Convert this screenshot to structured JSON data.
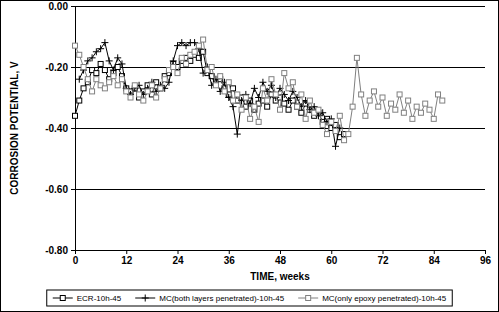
{
  "chart_data": {
    "type": "line",
    "xlabel": "TIME, weeks",
    "ylabel": "CORROSION POTENTIAL, V",
    "x": [
      0,
      1,
      2,
      3,
      4,
      5,
      6,
      7,
      8,
      9,
      10,
      11,
      12,
      13,
      14,
      15,
      16,
      17,
      18,
      19,
      20,
      21,
      22,
      23,
      24,
      25,
      26,
      27,
      28,
      29,
      30,
      31,
      32,
      33,
      34,
      35,
      36,
      37,
      38,
      39,
      40,
      41,
      42,
      43,
      44,
      45,
      46,
      47,
      48,
      49,
      50,
      51,
      52,
      53,
      54,
      55,
      56,
      57,
      58,
      59,
      60,
      61,
      62,
      63,
      64,
      65,
      66,
      67,
      68,
      69,
      70,
      71,
      72,
      73,
      74,
      75,
      76,
      77,
      78,
      79,
      80,
      81,
      82,
      83,
      84,
      85,
      86
    ],
    "series": [
      {
        "name": "ECR-10h-45",
        "color": "#000000",
        "marker": "square",
        "line_style": "solid",
        "values": [
          -0.36,
          -0.31,
          -0.27,
          -0.25,
          -0.21,
          -0.22,
          -0.19,
          -0.21,
          -0.24,
          -0.22,
          -0.2,
          -0.23,
          -0.27,
          -0.28,
          -0.27,
          -0.3,
          -0.28,
          -0.26,
          -0.29,
          -0.25,
          -0.27,
          -0.23,
          -0.22,
          -0.19,
          -0.2,
          -0.18,
          -0.17,
          -0.18,
          -0.16,
          -0.17,
          -0.15,
          -0.22,
          -0.23,
          -0.25,
          -0.24,
          -0.27,
          -0.29,
          -0.27,
          -0.31,
          -0.3,
          -0.33,
          -0.31,
          -0.34,
          -0.32,
          -0.31,
          -0.33,
          -0.29,
          -0.31,
          -0.3,
          -0.32,
          -0.34,
          -0.31,
          -0.33,
          -0.35,
          -0.32,
          -0.34,
          -0.36,
          -0.35,
          -0.38,
          -0.37,
          -0.4,
          -0.39,
          -0.43,
          -0.42,
          null,
          null,
          null,
          null,
          null,
          null,
          null,
          null,
          null,
          null,
          null,
          null,
          null,
          null,
          null,
          null,
          null,
          null,
          null,
          null,
          null,
          null,
          null
        ]
      },
      {
        "name": "MC(both layers penetrated)-10h-45",
        "color": "#000000",
        "marker": "plus",
        "line_style": "solid",
        "values": [
          null,
          -0.24,
          -0.21,
          -0.18,
          -0.17,
          -0.15,
          -0.14,
          -0.12,
          -0.18,
          -0.21,
          -0.17,
          -0.19,
          -0.27,
          -0.29,
          -0.27,
          -0.26,
          -0.29,
          -0.27,
          -0.25,
          -0.28,
          -0.26,
          -0.27,
          -0.25,
          -0.18,
          -0.13,
          -0.12,
          -0.13,
          -0.12,
          -0.12,
          -0.14,
          -0.22,
          -0.2,
          -0.26,
          -0.24,
          -0.28,
          -0.25,
          -0.3,
          -0.33,
          -0.42,
          -0.31,
          -0.29,
          -0.32,
          -0.27,
          -0.3,
          -0.25,
          -0.28,
          -0.26,
          -0.3,
          -0.27,
          -0.29,
          -0.31,
          -0.28,
          -0.3,
          -0.33,
          -0.31,
          -0.34,
          -0.33,
          -0.36,
          -0.35,
          -0.38,
          -0.37,
          -0.46,
          -0.4,
          null,
          null,
          null,
          null,
          null,
          null,
          null,
          null,
          null,
          null,
          null,
          null,
          null,
          null,
          null,
          null,
          null,
          null,
          null,
          null,
          null,
          null,
          null,
          null
        ]
      },
      {
        "name": "MC(only epoxy penetrated)-10h-45",
        "color": "#808080",
        "marker": "square",
        "line_style": "solid",
        "values": [
          -0.13,
          -0.16,
          -0.2,
          -0.24,
          -0.28,
          -0.24,
          -0.26,
          -0.27,
          -0.25,
          -0.23,
          -0.26,
          -0.24,
          -0.28,
          -0.3,
          -0.26,
          -0.29,
          -0.31,
          -0.28,
          -0.26,
          -0.3,
          -0.27,
          -0.24,
          -0.21,
          -0.2,
          -0.22,
          -0.17,
          -0.19,
          -0.16,
          -0.15,
          -0.13,
          -0.11,
          -0.21,
          -0.2,
          -0.26,
          -0.23,
          -0.28,
          -0.25,
          -0.31,
          -0.29,
          -0.34,
          -0.3,
          -0.37,
          -0.33,
          -0.38,
          -0.27,
          -0.31,
          -0.24,
          -0.29,
          -0.34,
          -0.22,
          -0.27,
          -0.25,
          -0.33,
          -0.29,
          -0.37,
          -0.31,
          -0.35,
          -0.34,
          -0.39,
          -0.42,
          -0.38,
          -0.41,
          -0.36,
          -0.44,
          -0.42,
          -0.33,
          -0.17,
          -0.29,
          -0.36,
          -0.31,
          -0.28,
          -0.33,
          -0.3,
          -0.36,
          -0.32,
          -0.34,
          -0.29,
          -0.35,
          -0.31,
          -0.37,
          -0.33,
          -0.35,
          -0.32,
          -0.34,
          -0.37,
          -0.29,
          -0.31
        ]
      }
    ],
    "xlim": [
      0,
      96
    ],
    "xticks": [
      0,
      12,
      24,
      36,
      48,
      60,
      72,
      84,
      96
    ],
    "ylim": [
      -0.8,
      0
    ],
    "yticks": [
      {
        "value": -0.8,
        "label": "-0.80"
      },
      {
        "value": -0.6,
        "label": "-0.60"
      },
      {
        "value": -0.4,
        "label": "-0.40"
      },
      {
        "value": -0.2,
        "label": "-0.20"
      },
      {
        "value": 0,
        "label": "0.00"
      }
    ],
    "grid": true,
    "legend": "bottom"
  }
}
